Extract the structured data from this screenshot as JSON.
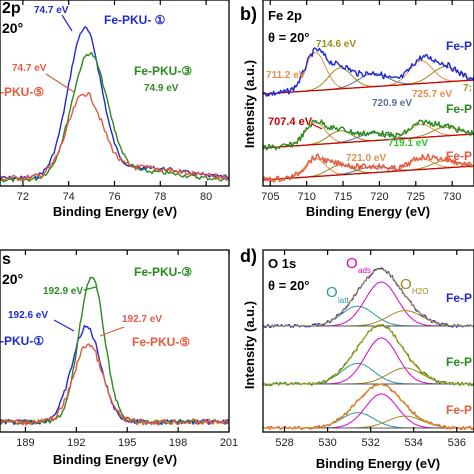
{
  "colors": {
    "pku1": "#1f2ad6",
    "pku3": "#2a8a1e",
    "pku5": "#e55a3c",
    "olive": "#9a8c1c",
    "orange": "#e0914a",
    "gray_blue": "#5a6e9a",
    "red": "#cc0000",
    "magenta": "#e100d2",
    "cyan": "#2b9aa8"
  },
  "panels": {
    "a": {
      "title": "2p",
      "theta": "20°",
      "xlabel": "Binding Energy (eV)",
      "xticks": [
        "72",
        "74",
        "76",
        "78",
        "80"
      ]
    },
    "b": {
      "letter": "b)",
      "title": "Fe 2p",
      "theta": "θ = 20°",
      "xlabel": "Binding Energy (eV)",
      "ylabel": "Intensity (a.u.)",
      "xticks": [
        "705",
        "710",
        "715",
        "720",
        "725",
        "730"
      ]
    },
    "c": {
      "title": "s",
      "theta": "20°",
      "xlabel": "Binding Energy (eV)",
      "xticks": [
        "189",
        "192",
        "195",
        "198",
        "201"
      ]
    },
    "d": {
      "letter": "d)",
      "title": "O 1s",
      "theta": "θ = 20°",
      "xlabel": "Binding Energy (eV)",
      "ylabel": "Intensity (a.u.)",
      "xticks": [
        "528",
        "530",
        "532",
        "534",
        "536"
      ]
    }
  },
  "annotations": {
    "a_747_blue": "74.7 eV",
    "a_pku1": "Fe-PKU- ①",
    "a_pku3": "Fe-PKU-③",
    "a_749": "74.9 eV",
    "a_747_orange": "74.7 eV",
    "a_pku5": "-PKU-⑤",
    "b_fe_top": "Fe-P",
    "b_fe_mid": "Fe-P",
    "b_fe_bot": "Fe-P",
    "b_7146": "714.6 eV",
    "b_7112": "711.2 eV",
    "b_7257": "725.7 eV",
    "b_73": "7:",
    "b_7209": "720.9 eV",
    "b_7074": "707.4 eV",
    "b_7191": "719.1 eV",
    "b_7210": "721.0 eV",
    "c_pku3": "Fe-PKU-③",
    "c_1929": "192.9 eV",
    "c_1926": "192.6 eV",
    "c_pku1": "-PKU-①",
    "c_1927": "192.7 eV",
    "c_pku5": "Fe-PKU-⑤",
    "d_olatt": "O",
    "d_olatt_sub": "latt",
    "d_oads": "O",
    "d_oads_sub": "ads",
    "d_oh2o": "O",
    "d_oh2o_sub": "H2O",
    "d_fe_top": "Fe-P",
    "d_fe_mid": "Fe-P",
    "d_fe_bot": "Fe-P"
  },
  "chart_data": [
    {
      "type": "line",
      "panel": "a",
      "xlabel": "Binding Energy (eV)",
      "xlim": [
        71.0,
        81.0
      ],
      "series": [
        {
          "name": "Fe-PKU- ①",
          "peak_eV": 74.7
        },
        {
          "name": "Fe-PKU-③",
          "peak_eV": 74.9
        },
        {
          "name": "Fe-PKU-⑤",
          "peak_eV": 74.7
        }
      ]
    },
    {
      "type": "line",
      "panel": "b",
      "xlabel": "Binding Energy (eV)",
      "ylabel": "Intensity (a.u.)",
      "xlim": [
        704.0,
        733.0
      ],
      "peaks_eV": [
        707.4,
        711.2,
        714.6,
        719.1,
        720.9,
        721.0,
        725.7
      ]
    },
    {
      "type": "line",
      "panel": "c",
      "xlabel": "Binding Energy (eV)",
      "xlim": [
        187.5,
        201.0
      ],
      "series": [
        {
          "name": "Fe-PKU-①",
          "peak_eV": 192.6
        },
        {
          "name": "Fe-PKU-③",
          "peak_eV": 192.9
        },
        {
          "name": "Fe-PKU-⑤",
          "peak_eV": 192.7
        }
      ]
    },
    {
      "type": "line",
      "panel": "d",
      "xlabel": "Binding Energy (eV)",
      "ylabel": "Intensity (a.u.)",
      "xlim": [
        527.0,
        536.8
      ]
    }
  ]
}
